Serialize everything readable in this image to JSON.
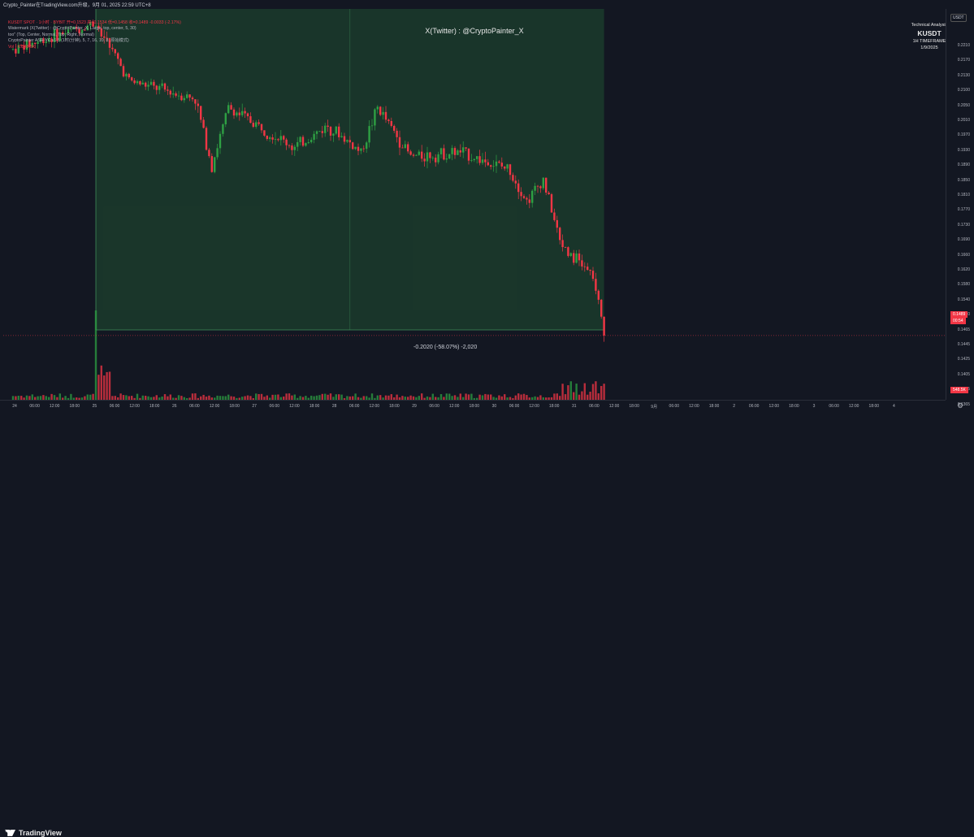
{
  "window": {
    "title": "Crypto_Painter在TradingView.com升级，9月 01, 2025 22:59 UTC+8"
  },
  "legend": [
    {
      "text": "KUSDT SPOT · 1小时 · BYBIT  开=0.1523  高=0.1534  低=0.1458  收=0.1489  -0.0033 (-2.17%)",
      "tone": "red"
    },
    {
      "text": "Watermark (X(Twitter) : @CryptoPainter_X, Large, top, center, 5, 30)",
      "tone": ""
    },
    {
      "text": "too\" (Top, Center, Normal, Top, Right, Normal)",
      "tone": ""
    },
    {
      "text": "CryptoPainter ASR-VC v1.5 (1时(分钟), 5, 7, 16, 10, 8, 原始模式)",
      "tone": ""
    },
    {
      "text": "Vol · K  548.5K",
      "tone": "red"
    }
  ],
  "watermark": {
    "text": "X(Twitter) : @CryptoPainter_X"
  },
  "technical_analysis": {
    "heading": "Technical Analysis",
    "symbol": "KUSDT",
    "timeframe": "1H TIMEFRAME",
    "date": "1/9/2025"
  },
  "measure": {
    "label": "-0.2020 (-58.07%) -2,020"
  },
  "price_axis": {
    "currency": "USDT",
    "ticks": [
      "0.2210",
      "0.2170",
      "0.2130",
      "0.2100",
      "0.2050",
      "0.2010",
      "0.1970",
      "0.1930",
      "0.1890",
      "0.1850",
      "0.1810",
      "0.1770",
      "0.1730",
      "0.1690",
      "0.1660",
      "0.1620",
      "0.1580",
      "0.1540",
      "0.1510",
      "0.1465",
      "0.1445",
      "0.1425",
      "0.1405",
      "0.1385",
      "0.1365"
    ],
    "last_price": "0.1489",
    "countdown": "00:54",
    "volume_tag": "548.5K"
  },
  "time_axis": {
    "labels": [
      "24",
      "06:00",
      "12:00",
      "18:00",
      "25",
      "06:00",
      "12:00",
      "18:00",
      "26",
      "06:00",
      "12:00",
      "18:00",
      "27",
      "06:00",
      "12:00",
      "18:00",
      "28",
      "06:00",
      "12:00",
      "18:00",
      "29",
      "06:00",
      "12:00",
      "18:00",
      "30",
      "06:00",
      "12:00",
      "18:00",
      "31",
      "06:00",
      "12:00",
      "18:00",
      "9月",
      "06:00",
      "12:00",
      "18:00",
      "2",
      "06:00",
      "12:00",
      "18:00",
      "3",
      "06:00",
      "12:00",
      "18:00",
      "4"
    ]
  },
  "brand": {
    "name": "TradingView"
  },
  "colors": {
    "up": "#22ab94",
    "down": "#f23645",
    "up_candle": "#2ea043",
    "measure_fill": "#1b3b2b",
    "background": "#131722"
  },
  "chart_data": {
    "type": "candlestick",
    "symbol": "KUSDT",
    "exchange": "BYBIT",
    "interval": "1H",
    "y_range": [
      0.1365,
      0.221
    ],
    "anchor_points": [
      {
        "time": "Aug 24 00:00",
        "price": 0.213
      },
      {
        "time": "Aug 25 06:00",
        "price": 0.219
      },
      {
        "time": "Aug 25 18:00",
        "price": 0.206
      },
      {
        "time": "Aug 26 18:00",
        "price": 0.202
      },
      {
        "time": "Aug 27 00:00",
        "price": 0.187
      },
      {
        "time": "Aug 27 06:00",
        "price": 0.2
      },
      {
        "time": "Aug 28 06:00",
        "price": 0.191
      },
      {
        "time": "Aug 28 18:00",
        "price": 0.196
      },
      {
        "time": "Aug 29 06:00",
        "price": 0.19
      },
      {
        "time": "Aug 29 12:00",
        "price": 0.2
      },
      {
        "time": "Aug 30 00:00",
        "price": 0.189
      },
      {
        "time": "Aug 30 18:00",
        "price": 0.19
      },
      {
        "time": "Aug 31 12:00",
        "price": 0.186
      },
      {
        "time": "Aug 31 18:00",
        "price": 0.179
      },
      {
        "time": "Sep 1 00:00",
        "price": 0.184
      },
      {
        "time": "Sep 1 06:00",
        "price": 0.17
      },
      {
        "time": "Sep 1 18:00",
        "price": 0.162
      },
      {
        "time": "Sep 1 22:00",
        "price": 0.1489
      }
    ],
    "last": {
      "open": 0.1523,
      "high": 0.1534,
      "low": 0.1458,
      "close": 0.1489,
      "change": -0.0033,
      "change_pct": -2.17
    },
    "measure": {
      "change": -0.202,
      "change_pct": -58.07,
      "ticks": -2020
    },
    "volume_last": "548.5K"
  }
}
